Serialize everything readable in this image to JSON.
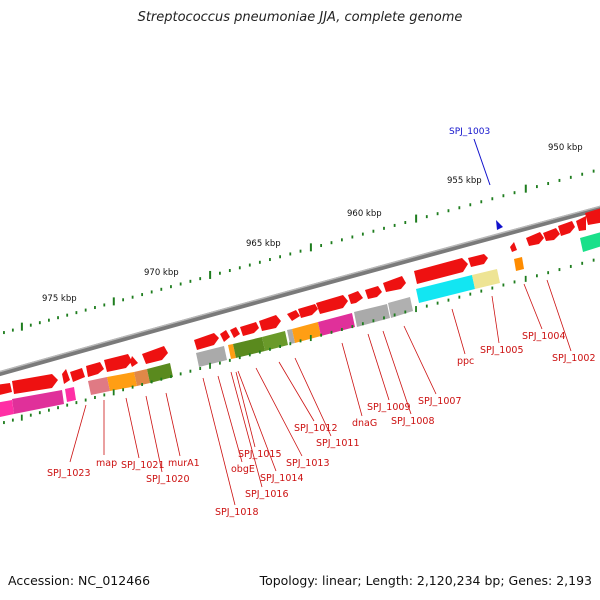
{
  "title": "Streptococcus pneumoniae JJA, complete genome",
  "footer": {
    "accession": "Accession: NC_012466",
    "topology": "Topology: linear; Length: 2,120,234 bp; Genes: 2,193"
  },
  "kbp_labels": [
    "975 kbp",
    "970 kbp",
    "965 kbp",
    "960 kbp",
    "955 kbp",
    "950 kbp"
  ],
  "highlight_gene": "SPJ_1003",
  "gene_labels": [
    "SPJ_1023",
    "map",
    "SPJ_1021",
    "SPJ_1020",
    "murA1",
    "SPJ_1018",
    "obgE",
    "SPJ_1016",
    "SPJ_1015",
    "SPJ_1014",
    "SPJ_1013",
    "SPJ_1012",
    "SPJ_1011",
    "dnaG",
    "SPJ_1009",
    "SPJ_1008",
    "SPJ_1007",
    "ppc",
    "SPJ_1005",
    "SPJ_1004",
    "SPJ_1002"
  ],
  "colors": {
    "backbone": "#8a8a8a",
    "gene_arrow": "#ee1111",
    "label": "#cc1111",
    "highlight": "#1111cc",
    "tick": "#1e7d1e"
  }
}
